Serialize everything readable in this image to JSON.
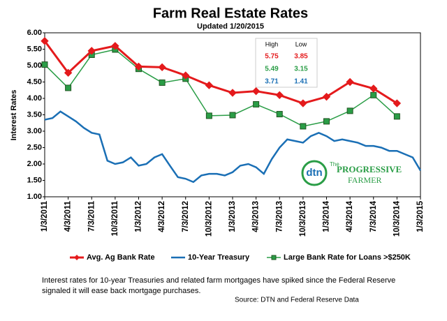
{
  "chart_data": {
    "type": "line",
    "title": "Farm Real Estate Rates",
    "subtitle": "Updated 1/20/2015",
    "y_label": "Interest Rates",
    "xlim": [
      0,
      16
    ],
    "xticks": [
      {
        "value": 0,
        "label": "1/3/2011"
      },
      {
        "value": 1,
        "label": "4/3/2011"
      },
      {
        "value": 2,
        "label": "7/3/2011"
      },
      {
        "value": 3,
        "label": "10/3/2011"
      },
      {
        "value": 4,
        "label": "1/3/2012"
      },
      {
        "value": 5,
        "label": "4/3/2012"
      },
      {
        "value": 6,
        "label": "7/3/2012"
      },
      {
        "value": 7,
        "label": "10/3/2012"
      },
      {
        "value": 8,
        "label": "1/3/2013"
      },
      {
        "value": 9,
        "label": "4/3/2013"
      },
      {
        "value": 10,
        "label": "7/3/2013"
      },
      {
        "value": 11,
        "label": "10/3/2013"
      },
      {
        "value": 12,
        "label": "1/3/2014"
      },
      {
        "value": 13,
        "label": "4/3/2014"
      },
      {
        "value": 14,
        "label": "7/3/2014"
      },
      {
        "value": 15,
        "label": "10/3/2014"
      },
      {
        "value": 16,
        "label": "1/3/2015"
      }
    ],
    "ylim": [
      1,
      6
    ],
    "yticks": [
      {
        "value": 1,
        "label": "1.00"
      },
      {
        "value": 1.5,
        "label": "1.50"
      },
      {
        "value": 2,
        "label": "2.00"
      },
      {
        "value": 2.5,
        "label": "2.50"
      },
      {
        "value": 3,
        "label": "3.00"
      },
      {
        "value": 3.5,
        "label": "3.50"
      },
      {
        "value": 4,
        "label": "4.00"
      },
      {
        "value": 4.5,
        "label": "4.50"
      },
      {
        "value": 5,
        "label": "5.00"
      },
      {
        "value": 5.5,
        "label": "5.50"
      },
      {
        "value": 6,
        "label": "6.00"
      }
    ],
    "series": [
      {
        "name": "Avg. Ag Bank Rate",
        "color": "#e41a1c",
        "marker": "diamond",
        "width": 3,
        "x": [
          0,
          1,
          2,
          3,
          4,
          5,
          6,
          7,
          8,
          9,
          10,
          11,
          12,
          13,
          14,
          15
        ],
        "values": [
          5.75,
          4.78,
          5.45,
          5.6,
          4.97,
          4.95,
          4.7,
          4.4,
          4.17,
          4.22,
          4.1,
          3.85,
          4.05,
          4.5,
          4.3,
          3.85
        ]
      },
      {
        "name": "10-Year Treasury",
        "color": "#1a6fb5",
        "marker": "none",
        "width": 2.5,
        "x": [
          0,
          0.33,
          0.67,
          1,
          1.33,
          1.67,
          2,
          2.33,
          2.67,
          3,
          3.33,
          3.67,
          4,
          4.33,
          4.67,
          5,
          5.33,
          5.67,
          6,
          6.33,
          6.67,
          7,
          7.33,
          7.67,
          8,
          8.33,
          8.67,
          9,
          9.33,
          9.67,
          10,
          10.33,
          10.67,
          11,
          11.33,
          11.67,
          12,
          12.33,
          12.67,
          13,
          13.33,
          13.67,
          14,
          14.33,
          14.67,
          15,
          15.33,
          15.67,
          16
        ],
        "values": [
          3.35,
          3.4,
          3.6,
          3.45,
          3.3,
          3.1,
          2.95,
          2.9,
          2.1,
          2.0,
          2.05,
          2.2,
          1.95,
          2.0,
          2.2,
          2.3,
          1.95,
          1.6,
          1.55,
          1.45,
          1.65,
          1.7,
          1.7,
          1.65,
          1.75,
          1.95,
          2.0,
          1.9,
          1.7,
          2.15,
          2.5,
          2.75,
          2.7,
          2.65,
          2.85,
          2.95,
          2.85,
          2.7,
          2.75,
          2.7,
          2.65,
          2.55,
          2.55,
          2.5,
          2.4,
          2.4,
          2.3,
          2.2,
          1.8
        ]
      },
      {
        "name": "Large Bank Rate for Loans >$250K",
        "color": "#2a9d46",
        "marker": "square",
        "width": 1.5,
        "x": [
          0,
          1,
          2,
          3,
          4,
          5,
          6,
          7,
          8,
          9,
          10,
          11,
          12,
          13,
          14,
          15
        ],
        "values": [
          5.03,
          4.32,
          5.33,
          5.49,
          4.9,
          4.48,
          4.6,
          3.47,
          3.49,
          3.82,
          3.52,
          3.15,
          3.3,
          3.62,
          4.1,
          3.45
        ]
      }
    ],
    "summary": {
      "headers": [
        "High",
        "Low"
      ],
      "rows": [
        {
          "color": "#e41a1c",
          "values": [
            5.75,
            3.85
          ]
        },
        {
          "color": "#2a9d46",
          "values": [
            5.49,
            3.15
          ]
        },
        {
          "color": "#1a6fb5",
          "values": [
            3.71,
            1.41
          ]
        }
      ]
    },
    "logo": [
      "dtn",
      "The",
      "PROGRESSIVE",
      "FARMER"
    ],
    "note": [
      "Interest  rates for 10-year Treasuries and related farm mortgages have spiked since the Federal Reserve",
      "signaled it will ease back mortgage purchases."
    ],
    "source": "Source: DTN  and Federal Reserve Data"
  }
}
